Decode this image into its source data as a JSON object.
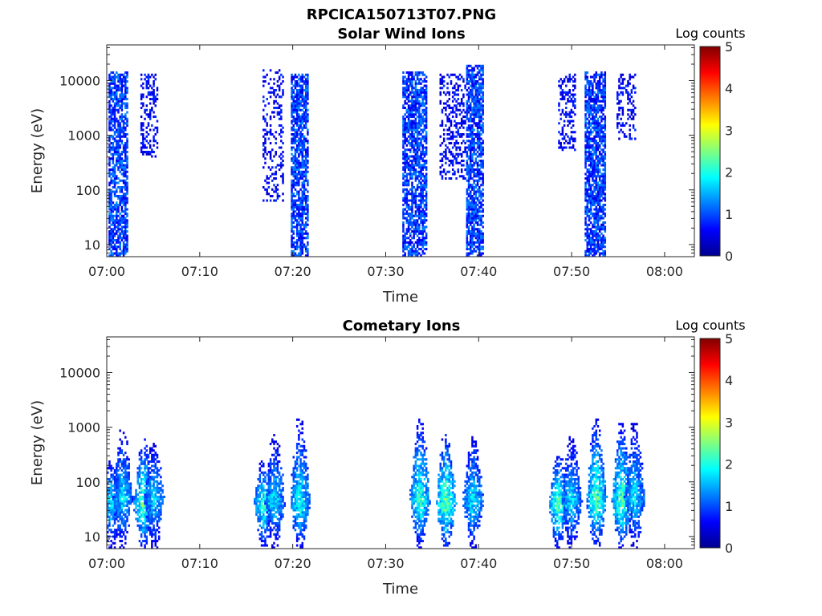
{
  "figure": {
    "title": "RPCICA150713T07.PNG"
  },
  "chart_data": [
    {
      "type": "heatmap",
      "title": "Solar Wind Ions",
      "xlabel": "Time",
      "ylabel": "Energy (eV)",
      "x_ticks": [
        "07:00",
        "07:10",
        "07:20",
        "07:30",
        "07:40",
        "07:50",
        "08:00"
      ],
      "x_range_min": [
        0,
        63.2
      ],
      "y_ticks": [
        "10",
        "100",
        "1000",
        "10000"
      ],
      "y_scale": "log",
      "y_range_eV": [
        6,
        45000
      ],
      "colorbar": {
        "label": "Log counts",
        "ticks": [
          "0",
          "1",
          "2",
          "3",
          "4",
          "5"
        ],
        "range": [
          0,
          5
        ],
        "colormap": "jet"
      },
      "bursts": [
        {
          "t_start_min": 0.3,
          "t_end_min": 2.2,
          "e_low_eV": 6,
          "e_high_eV": 15000,
          "level": 0.9,
          "density": 0.7
        },
        {
          "t_start_min": 3.8,
          "t_end_min": 5.4,
          "e_low_eV": 400,
          "e_high_eV": 14000,
          "level": 0.6,
          "density": 0.4
        },
        {
          "t_start_min": 16.8,
          "t_end_min": 18.9,
          "e_low_eV": 60,
          "e_high_eV": 16000,
          "level": 0.6,
          "density": 0.3
        },
        {
          "t_start_min": 19.8,
          "t_end_min": 21.6,
          "e_low_eV": 6,
          "e_high_eV": 14000,
          "level": 0.9,
          "density": 0.75
        },
        {
          "t_start_min": 31.8,
          "t_end_min": 34.3,
          "e_low_eV": 6,
          "e_high_eV": 15000,
          "level": 0.9,
          "density": 0.7
        },
        {
          "t_start_min": 35.8,
          "t_end_min": 38.6,
          "e_low_eV": 150,
          "e_high_eV": 14000,
          "level": 0.6,
          "density": 0.35
        },
        {
          "t_start_min": 38.8,
          "t_end_min": 40.5,
          "e_low_eV": 6,
          "e_high_eV": 20000,
          "level": 0.9,
          "density": 0.75
        },
        {
          "t_start_min": 48.6,
          "t_end_min": 50.3,
          "e_low_eV": 500,
          "e_high_eV": 14000,
          "level": 0.6,
          "density": 0.35
        },
        {
          "t_start_min": 51.5,
          "t_end_min": 53.6,
          "e_low_eV": 6,
          "e_high_eV": 15000,
          "level": 0.9,
          "density": 0.75
        },
        {
          "t_start_min": 55.0,
          "t_end_min": 56.8,
          "e_low_eV": 800,
          "e_high_eV": 14000,
          "level": 0.6,
          "density": 0.35
        }
      ]
    },
    {
      "type": "heatmap",
      "title": "Cometary Ions",
      "xlabel": "Time",
      "ylabel": "Energy (eV)",
      "x_ticks": [
        "07:00",
        "07:10",
        "07:20",
        "07:30",
        "07:40",
        "07:50",
        "08:00"
      ],
      "x_range_min": [
        0,
        63.2
      ],
      "y_ticks": [
        "10",
        "100",
        "1000",
        "10000"
      ],
      "y_scale": "log",
      "y_range_eV": [
        6,
        45000
      ],
      "colorbar": {
        "label": "Log counts",
        "ticks": [
          "0",
          "1",
          "2",
          "3",
          "4",
          "5"
        ],
        "range": [
          0,
          5
        ],
        "colormap": "jet"
      },
      "bursts": [
        {
          "t_center_min": 0.4,
          "e_peak_eV": 45,
          "e_high_eV": 250,
          "peak_level": 1.9
        },
        {
          "t_center_min": 1.6,
          "e_peak_eV": 50,
          "e_high_eV": 900,
          "peak_level": 1.8
        },
        {
          "t_center_min": 3.9,
          "e_peak_eV": 40,
          "e_high_eV": 600,
          "peak_level": 2.4
        },
        {
          "t_center_min": 5.0,
          "e_peak_eV": 50,
          "e_high_eV": 500,
          "peak_level": 1.8
        },
        {
          "t_center_min": 16.8,
          "e_peak_eV": 40,
          "e_high_eV": 250,
          "peak_level": 2.2
        },
        {
          "t_center_min": 18.0,
          "e_peak_eV": 45,
          "e_high_eV": 800,
          "peak_level": 1.8
        },
        {
          "t_center_min": 20.7,
          "e_peak_eV": 40,
          "e_high_eV": 1500,
          "peak_level": 2.0
        },
        {
          "t_center_min": 33.6,
          "e_peak_eV": 45,
          "e_high_eV": 1500,
          "peak_level": 2.2
        },
        {
          "t_center_min": 36.4,
          "e_peak_eV": 40,
          "e_high_eV": 800,
          "peak_level": 2.5
        },
        {
          "t_center_min": 39.3,
          "e_peak_eV": 45,
          "e_high_eV": 700,
          "peak_level": 1.9
        },
        {
          "t_center_min": 48.5,
          "e_peak_eV": 40,
          "e_high_eV": 300,
          "peak_level": 2.4
        },
        {
          "t_center_min": 49.9,
          "e_peak_eV": 45,
          "e_high_eV": 700,
          "peak_level": 1.8
        },
        {
          "t_center_min": 52.6,
          "e_peak_eV": 45,
          "e_high_eV": 1500,
          "peak_level": 2.3
        },
        {
          "t_center_min": 55.3,
          "e_peak_eV": 40,
          "e_high_eV": 1200,
          "peak_level": 2.4
        },
        {
          "t_center_min": 56.7,
          "e_peak_eV": 50,
          "e_high_eV": 1200,
          "peak_level": 1.8
        }
      ]
    }
  ]
}
